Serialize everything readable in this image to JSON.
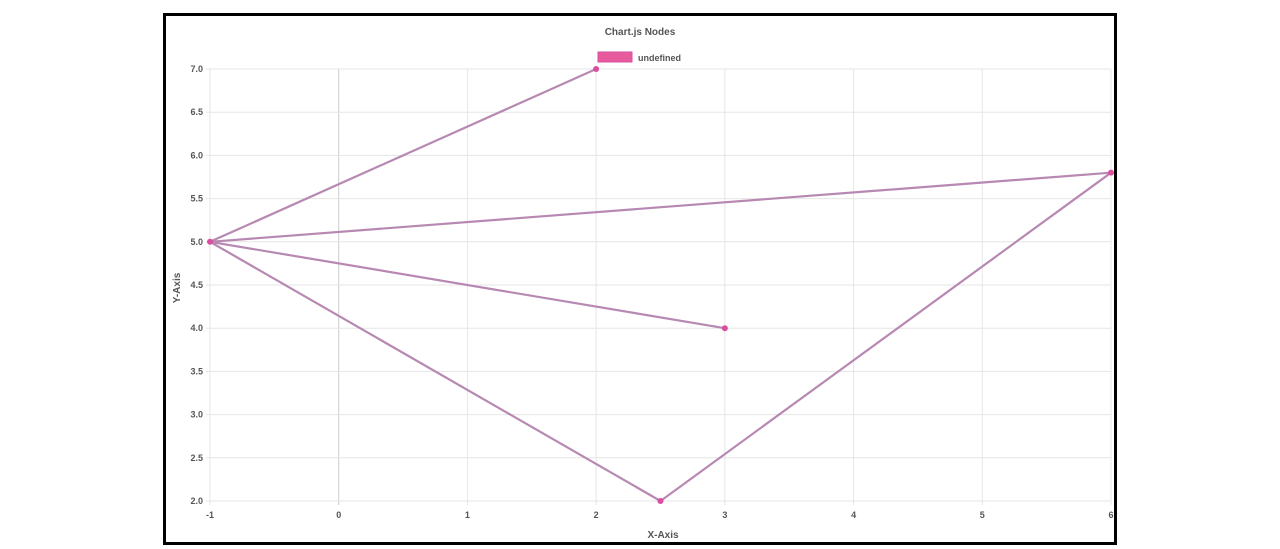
{
  "chart_data": {
    "type": "scatter",
    "title": "Chart.js Nodes",
    "legend": {
      "label": "undefined",
      "position": "top",
      "color": "#e75b9e"
    },
    "xlabel": "X-Axis",
    "ylabel": "Y-Axis",
    "xlim": [
      -1,
      6
    ],
    "ylim": [
      2,
      7
    ],
    "xticks": [
      -1,
      0,
      1,
      2,
      3,
      4,
      5,
      6
    ],
    "yticks": [
      "2.0",
      "2.5",
      "3.0",
      "3.5",
      "4.0",
      "4.5",
      "5.0",
      "5.5",
      "6.0",
      "6.5",
      "7.0"
    ],
    "grid": true,
    "point_color": "#d94fa0",
    "line_color": "#b789b2",
    "points": [
      {
        "x": -1,
        "y": 5
      },
      {
        "x": 2,
        "y": 7
      },
      {
        "x": 6,
        "y": 5.8
      },
      {
        "x": 3,
        "y": 4
      },
      {
        "x": 2.5,
        "y": 2
      }
    ],
    "edges": [
      {
        "from": {
          "x": -1,
          "y": 5
        },
        "to": {
          "x": 2,
          "y": 7
        }
      },
      {
        "from": {
          "x": -1,
          "y": 5
        },
        "to": {
          "x": 6,
          "y": 5.8
        }
      },
      {
        "from": {
          "x": -1,
          "y": 5
        },
        "to": {
          "x": 3,
          "y": 4
        }
      },
      {
        "from": {
          "x": -1,
          "y": 5
        },
        "to": {
          "x": 2.5,
          "y": 2
        }
      },
      {
        "from": {
          "x": 2.5,
          "y": 2
        },
        "to": {
          "x": 6,
          "y": 5.8
        }
      }
    ]
  }
}
